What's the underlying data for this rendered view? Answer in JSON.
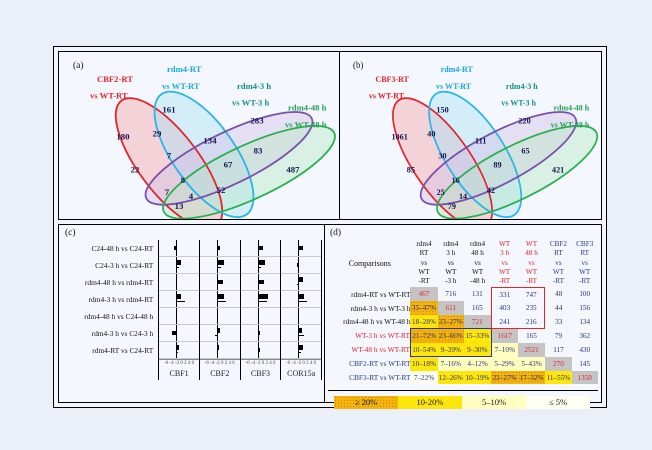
{
  "figure_background": "#f2f5fc",
  "accent_colors": {
    "red": "#e3242b",
    "cyan": "#1ea9e4",
    "purple": "#7a4fad",
    "teal": "#178f8f",
    "green": "#27ae55",
    "navy": "#2b3990",
    "value_text": "#28327d",
    "diagonal_bg": "#c4c4c4"
  },
  "chart_data": [
    {
      "type": "venn4",
      "tag": "(a)",
      "sets": [
        {
          "label": [
            "CBF2-RT",
            "vs WT-RT"
          ],
          "stroke": "#e3242b",
          "fill": "#f2a6aa",
          "label_color": "#e3242b"
        },
        {
          "label": [
            "rdm4-RT",
            "vs WT-RT"
          ],
          "stroke": "#2ab4e8",
          "fill": "#aadff5",
          "label_color": "#1ba8e0"
        },
        {
          "label": [
            "rdm4-3 h",
            "vs WT-3 h"
          ],
          "stroke": "#7a4fad",
          "fill": "#d2c2e7",
          "label_color": "#178f8f"
        },
        {
          "label": [
            "rdm4-48 h",
            "vs WT-48 h"
          ],
          "stroke": "#28b04e",
          "fill": "#b9e7c7",
          "label_color": "#23a455"
        }
      ],
      "regions": {
        "A": 180,
        "B": 161,
        "AB": 29,
        "C": 283,
        "BC": 134,
        "ABC": 7,
        "D": 487,
        "CD": 83,
        "BCD": 67,
        "AC": 22,
        "ABCD": 8,
        "ACD": 7,
        "ABD": 4,
        "BD": 52,
        "AD": 13
      }
    },
    {
      "type": "venn4",
      "tag": "(b)",
      "sets": [
        {
          "label": [
            "CBF3-RT",
            "vs WT-RT"
          ],
          "stroke": "#e3242b",
          "fill": "#f2a6aa",
          "label_color": "#e3242b"
        },
        {
          "label": [
            "rdm4-RT",
            "vs WT-RT"
          ],
          "stroke": "#2ab4e8",
          "fill": "#aadff5",
          "label_color": "#1ba8e0"
        },
        {
          "label": [
            "rdm4-3 h",
            "vs WT-3 h"
          ],
          "stroke": "#7a4fad",
          "fill": "#d2c2e7",
          "label_color": "#178f8f"
        },
        {
          "label": [
            "rdm4-48 h",
            "vs WT-48 h"
          ],
          "stroke": "#28b04e",
          "fill": "#b9e7c7",
          "label_color": "#23a455"
        }
      ],
      "regions": {
        "A": 1061,
        "B": 150,
        "AB": 40,
        "C": 220,
        "BC": 111,
        "ABC": 30,
        "D": 421,
        "CD": 65,
        "BCD": 89,
        "AC": 85,
        "ABCD": 16,
        "ACD": 25,
        "ABD": 14,
        "BD": 42,
        "AD": 79
      }
    },
    {
      "type": "bar",
      "tag": "(c)",
      "orientation": "horizontal",
      "genes": [
        "CBF1",
        "CBF2",
        "CBF3",
        "COR15a"
      ],
      "axis_ticks": [
        "-6",
        "-4",
        "-2",
        "0",
        "2",
        "4",
        "6"
      ],
      "xlim": [
        -6,
        6
      ],
      "rows": [
        {
          "label": "C24-48 h vs C24-RT",
          "values": [
            [
              -0.8
            ],
            [
              1.0
            ],
            [
              1.6
            ],
            [
              1.4
            ]
          ]
        },
        {
          "label": "C24-3 h vs C24-RT",
          "values": [
            [
              1.6,
              0.9
            ],
            [
              2.2,
              1.3
            ],
            [
              2.4,
              1.2
            ],
            [
              -0.4
            ]
          ]
        },
        {
          "label": "rdm4-48 h vs rdm4-RT",
          "values": [
            [
              0.2
            ],
            [
              1.8
            ],
            [
              2.0
            ],
            [
              1.4,
              -0.3
            ]
          ]
        },
        {
          "label": "rdm4-3 h vs rdm4-RT",
          "values": [
            [
              1.5,
              2.6
            ],
            [
              2.3,
              2.9
            ],
            [
              3.2,
              2.9
            ],
            [
              1.8,
              2.6
            ]
          ]
        },
        {
          "label": "rdm4-48 h vs C24-48 h",
          "values": [
            [
              0.1
            ],
            [
              0.2
            ],
            [
              0.4
            ],
            [
              0.15
            ]
          ]
        },
        {
          "label": "rdm4-3 h vs C24-3 h",
          "values": [
            [
              -1.4
            ],
            [
              0.9,
              -0.6
            ],
            [
              0.8
            ],
            [
              1.2,
              1.8
            ]
          ]
        },
        {
          "label": "rdm4-RT vs C24-RT",
          "values": [
            [
              0.9,
              0.4
            ],
            [
              0.7,
              0.4
            ],
            [
              0.6
            ],
            [
              1.5,
              0.7
            ]
          ]
        }
      ]
    },
    {
      "type": "table",
      "tag": "(d)",
      "corner": "Comparisons",
      "col_headers": [
        {
          "text": "rdm4\nRT\nvs\nWT\n-RT",
          "color": "black"
        },
        {
          "text": "rdm4\n3 h\nvs\nWT\n-3 h",
          "color": "black"
        },
        {
          "text": "rdm4\n48 h\nvs\nWT\n-48 h",
          "color": "black"
        },
        {
          "text": "WT\n3 h\nvs\nWT\n-RT",
          "color": "red"
        },
        {
          "text": "WT\n48 h\nvs\nWT\n-RT",
          "color": "red"
        },
        {
          "text": "CBF2\nRT\nvs\nWT\n-RT",
          "color": "blue"
        },
        {
          "text": "CBF3\nRT\nvs\nWT\n-RT",
          "color": "blue"
        }
      ],
      "rows": [
        {
          "label": "rdm4-RT vs WT-RT",
          "color": "black",
          "cells": [
            {
              "v": "467",
              "bg": "diag"
            },
            {
              "v": "716"
            },
            {
              "v": "131"
            },
            {
              "v": "331"
            },
            {
              "v": "747"
            },
            {
              "v": "48"
            },
            {
              "v": "100"
            }
          ]
        },
        {
          "label": "rdm4-3 h vs WT-3 h",
          "color": "black",
          "cells": [
            {
              "v": "35–47%",
              "bg": "p20"
            },
            {
              "v": "611",
              "bg": "diag"
            },
            {
              "v": "165"
            },
            {
              "v": "403"
            },
            {
              "v": "235"
            },
            {
              "v": "44"
            },
            {
              "v": "156"
            }
          ]
        },
        {
          "label": "rdm4-48 h vs WT-48 h",
          "color": "black",
          "cells": [
            {
              "v": "18–28%",
              "bg": "p10"
            },
            {
              "v": "23–27%",
              "bg": "p20"
            },
            {
              "v": "721",
              "bg": "diag"
            },
            {
              "v": "241"
            },
            {
              "v": "216"
            },
            {
              "v": "33"
            },
            {
              "v": "134"
            }
          ]
        },
        {
          "label": "WT-3 h vs WT-RT",
          "color": "red",
          "cells": [
            {
              "v": "21–72%",
              "bg": "p20"
            },
            {
              "v": "23–66%",
              "bg": "p20"
            },
            {
              "v": "15–33%",
              "bg": "p10"
            },
            {
              "v": "1617",
              "bg": "diag"
            },
            {
              "v": "165"
            },
            {
              "v": "79"
            },
            {
              "v": "362"
            }
          ]
        },
        {
          "label": "WT-48 h vs WT-RT",
          "color": "red",
          "cells": [
            {
              "v": "10–54%",
              "bg": "p10"
            },
            {
              "v": "9–39%",
              "bg": "p10"
            },
            {
              "v": "9–30%",
              "bg": "p10"
            },
            {
              "v": "7–10%",
              "bg": "p5"
            },
            {
              "v": "2521",
              "bg": "diag"
            },
            {
              "v": "117"
            },
            {
              "v": "430"
            }
          ]
        },
        {
          "label": "CBF2-RT vs WT-RT",
          "color": "blue",
          "cells": [
            {
              "v": "10–18%",
              "bg": "p10"
            },
            {
              "v": "7–16%",
              "bg": "p5"
            },
            {
              "v": "4–12%",
              "bg": "p5"
            },
            {
              "v": "5–29%",
              "bg": "p5"
            },
            {
              "v": "5–43%",
              "bg": "p5"
            },
            {
              "v": "270",
              "bg": "diag"
            },
            {
              "v": "145"
            }
          ]
        },
        {
          "label": "CBF3-RT vs WT-RT",
          "color": "blue",
          "cells": [
            {
              "v": "7–22%",
              "bg": "p0"
            },
            {
              "v": "12–26%",
              "bg": "p10"
            },
            {
              "v": "10–19%",
              "bg": "p10"
            },
            {
              "v": "22–27%",
              "bg": "p20"
            },
            {
              "v": "17–32%",
              "bg": "p20"
            },
            {
              "v": "11–55%",
              "bg": "p10"
            },
            {
              "v": "1350",
              "bg": "diag"
            }
          ]
        }
      ],
      "highlight_boxes": [
        {
          "color": "#e3242b",
          "rows": [
            0,
            2
          ],
          "cols": [
            3,
            4
          ]
        },
        {
          "color": "#2b3990",
          "rows": [
            3,
            4
          ],
          "cols": [
            0,
            2
          ]
        }
      ],
      "legend": [
        {
          "label": "≥ 20%",
          "bg": "p20"
        },
        {
          "label": "10-20%",
          "bg": "p10"
        },
        {
          "label": "5–10%",
          "bg": "p5"
        },
        {
          "label": "≤ 5%",
          "bg": "p0"
        }
      ]
    }
  ]
}
